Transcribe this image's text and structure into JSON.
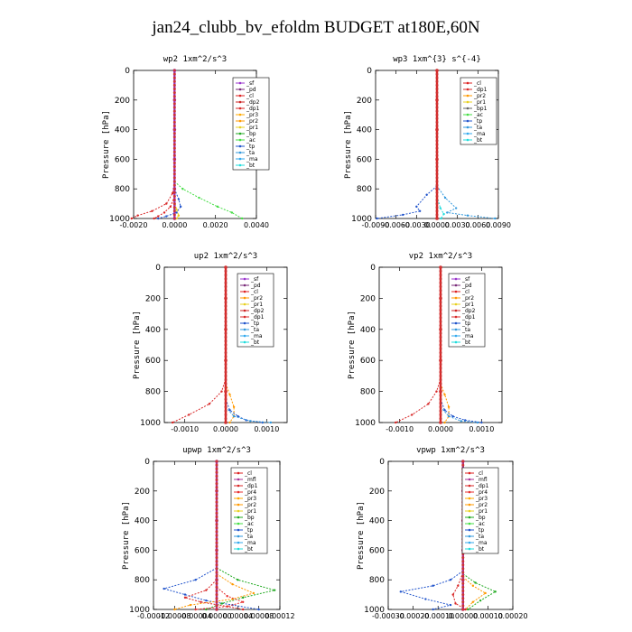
{
  "title": "jan24_clubb_bv_efoldm  BUDGET at180E,60N",
  "colors": {
    "_sf": "#9933cc",
    "_pd": "#7a2c7a",
    "_cl": "#dd2222",
    "_dp2": "#cc2222",
    "_dp1": "#d82828",
    "_pr3": "#ffaa00",
    "_pr2": "#ff9900",
    "_pr1": "#e8d020",
    "_bp": "#22aa22",
    "_ac": "#44dd44",
    "_tp": "#2255cc",
    "_ta": "#3399dd",
    "_ma": "#33aaee",
    "_bt": "#22dddd",
    "_mfl": "#aa3399",
    "_pr4": "#e83030"
  },
  "chart_data": [
    {
      "id": "wp2",
      "type": "line",
      "title": "wp2   1xm^2/s^3",
      "ylabel": "Pressure [hPa]",
      "xlim": [
        -0.002,
        0.004
      ],
      "ylim": [
        1000,
        0
      ],
      "xticks": [
        "-0.0020",
        "0.0000",
        "0.0020",
        "0.0040"
      ],
      "xtick_values": [
        -0.002,
        0,
        0.002,
        0.004
      ],
      "yticks": [
        "0",
        "200",
        "400",
        "600",
        "800",
        "1000"
      ],
      "legend": [
        "_sf",
        "_pd",
        "_cl",
        "_dp2",
        "_dp1",
        "_pr3",
        "_pr2",
        "_pr1",
        "_bp",
        "_ac",
        "_tp",
        "_ta",
        "_ma",
        "_bt"
      ],
      "series": [
        {
          "name": "_dp1",
          "x": [
            0,
            -0.0001,
            -0.0004,
            -0.0011,
            -0.0018,
            -0.0021
          ],
          "y": [
            750,
            830,
            900,
            950,
            980,
            1000
          ]
        },
        {
          "name": "_ac",
          "x": [
            0,
            0.0004,
            0.0012,
            0.0021,
            0.0028,
            0.0033
          ],
          "y": [
            750,
            800,
            860,
            920,
            960,
            1000
          ]
        },
        {
          "name": "_tp",
          "x": [
            0,
            0.0002,
            0.0003,
            0.0001,
            -0.0004,
            -0.0008
          ],
          "y": [
            800,
            870,
            920,
            960,
            985,
            1000
          ]
        },
        {
          "name": "_cl",
          "x": [
            0,
            -0.0002,
            -0.0005,
            -0.0008,
            -0.001
          ],
          "y": [
            850,
            920,
            960,
            985,
            1000
          ]
        },
        {
          "name": "_pr1",
          "x": [
            0,
            0.0001,
            0.0002,
            0.0001
          ],
          "y": [
            880,
            940,
            980,
            1000
          ]
        },
        {
          "name": "_sf",
          "x": [
            0,
            0,
            0,
            0,
            0,
            0
          ],
          "y": [
            0,
            200,
            400,
            600,
            800,
            1000
          ]
        }
      ]
    },
    {
      "id": "wp3",
      "type": "line",
      "title": "wp3   1xm^{3} s^{-4}",
      "ylabel": "Pressure [hPa]",
      "xlim": [
        -0.009,
        0.009
      ],
      "ylim": [
        1000,
        0
      ],
      "xticks": [
        "-0.0090",
        "-0.0060",
        "-0.0030",
        "0.0000",
        "0.0030",
        "0.0060",
        "0.0090"
      ],
      "xtick_values": [
        -0.009,
        -0.006,
        -0.003,
        0,
        0.003,
        0.006,
        0.009
      ],
      "yticks": [
        "0",
        "200",
        "400",
        "600",
        "800",
        "1000"
      ],
      "legend": [
        "_cl",
        "_dp1",
        "_pr2",
        "_pr1",
        "_bp1",
        "_ac",
        "_tp",
        "_ta",
        "_ma",
        "_bt"
      ],
      "series": [
        {
          "name": "_tp",
          "x": [
            0,
            -0.0015,
            -0.003,
            -0.0025,
            -0.005,
            -0.0088
          ],
          "y": [
            780,
            840,
            920,
            950,
            975,
            1000
          ]
        },
        {
          "name": "_ta",
          "x": [
            0,
            0.0012,
            0.0028,
            0.0015,
            0.0045,
            0.0085
          ],
          "y": [
            780,
            860,
            930,
            960,
            980,
            1000
          ]
        },
        {
          "name": "_bt",
          "x": [
            0,
            0.0005,
            0.001,
            0.0006
          ],
          "y": [
            850,
            930,
            970,
            1000
          ]
        },
        {
          "name": "_cl",
          "x": [
            0,
            0,
            0,
            0,
            0,
            0
          ],
          "y": [
            0,
            200,
            400,
            600,
            800,
            1000
          ]
        }
      ]
    },
    {
      "id": "up2",
      "type": "line",
      "title": "up2   1xm^2/s^3",
      "ylabel": "Pressure [hPa]",
      "xlim": [
        -0.0015,
        0.0015
      ],
      "ylim": [
        1000,
        0
      ],
      "xticks": [
        "-0.0010",
        "0.0000",
        "0.0010"
      ],
      "xtick_values": [
        -0.001,
        0,
        0.001
      ],
      "yticks": [
        "0",
        "200",
        "400",
        "600",
        "800",
        "1000"
      ],
      "legend": [
        "_sf",
        "_pd",
        "_cl",
        "_pr2",
        "_pr1",
        "_dp2",
        "_dp1",
        "_tp",
        "_ta",
        "_ma",
        "_bt"
      ],
      "series": [
        {
          "name": "_dp1",
          "x": [
            0,
            -0.0001,
            -0.0004,
            -0.0009,
            -0.0013
          ],
          "y": [
            720,
            800,
            880,
            950,
            1000
          ]
        },
        {
          "name": "_pr2",
          "x": [
            0,
            0.0001,
            0.0002,
            0.0002,
            0.0001
          ],
          "y": [
            750,
            820,
            900,
            960,
            1000
          ]
        },
        {
          "name": "_tp",
          "x": [
            0,
            0.0001,
            0.0003,
            0.0005,
            0.0009
          ],
          "y": [
            850,
            920,
            960,
            985,
            1000
          ]
        },
        {
          "name": "_ta",
          "x": [
            0,
            0.0002,
            0.0006,
            0.0011
          ],
          "y": [
            900,
            960,
            990,
            1000
          ]
        },
        {
          "name": "_cl",
          "x": [
            0,
            0,
            0,
            0,
            0,
            0
          ],
          "y": [
            0,
            200,
            400,
            600,
            800,
            1000
          ]
        }
      ]
    },
    {
      "id": "vp2",
      "type": "line",
      "title": "vp2   1xm^2/s^3",
      "ylabel": "Pressure [hPa]",
      "xlim": [
        -0.0015,
        0.0015
      ],
      "ylim": [
        1000,
        0
      ],
      "xticks": [
        "-0.0010",
        "0.0000",
        "0.0010"
      ],
      "xtick_values": [
        -0.001,
        0,
        0.001
      ],
      "yticks": [
        "0",
        "200",
        "400",
        "600",
        "800",
        "1000"
      ],
      "legend": [
        "_sf",
        "_pd",
        "_cl",
        "_pr2",
        "_pr1",
        "_dp2",
        "_dp1",
        "_tp",
        "_ta",
        "_ma",
        "_bt"
      ],
      "series": [
        {
          "name": "_dp1",
          "x": [
            0,
            -0.0001,
            -0.0003,
            -0.0007,
            -0.0011
          ],
          "y": [
            720,
            800,
            880,
            950,
            1000
          ]
        },
        {
          "name": "_pr2",
          "x": [
            0,
            0.0001,
            0.0002,
            0.0002,
            0.0001
          ],
          "y": [
            750,
            820,
            900,
            960,
            1000
          ]
        },
        {
          "name": "_tp",
          "x": [
            0,
            0.0001,
            0.0003,
            0.0006,
            0.001
          ],
          "y": [
            850,
            920,
            960,
            985,
            1000
          ]
        },
        {
          "name": "_ta",
          "x": [
            0,
            0.0002,
            0.0005,
            0.0009
          ],
          "y": [
            900,
            960,
            990,
            1000
          ]
        },
        {
          "name": "_cl",
          "x": [
            0,
            0,
            0,
            0,
            0,
            0
          ],
          "y": [
            0,
            200,
            400,
            600,
            800,
            1000
          ]
        }
      ]
    },
    {
      "id": "upwp",
      "type": "line",
      "title": "upwp   1xm^2/s^3",
      "ylabel": "Pressure [hPa]",
      "xlim": [
        -0.00012,
        0.00012
      ],
      "ylim": [
        1000,
        0
      ],
      "xticks": [
        "-0.00012",
        "-0.00008",
        "-0.00004",
        "0.00000",
        "0.00004",
        "0.00008",
        "0.00012"
      ],
      "xtick_values": [
        -0.00012,
        -8e-05,
        -4e-05,
        0,
        4e-05,
        8e-05,
        0.00012
      ],
      "yticks": [
        "0",
        "200",
        "400",
        "600",
        "800",
        "1000"
      ],
      "legend": [
        "_cl",
        "_mfl",
        "_dp1",
        "_pr4",
        "_pr3",
        "_pr2",
        "_pr1",
        "_bp",
        "_ac",
        "_tp",
        "_ta",
        "_ma",
        "_bt"
      ],
      "series": [
        {
          "name": "_tp",
          "x": [
            0,
            -4e-05,
            -0.0001,
            -6e-05,
            -2e-05,
            3e-05,
            8e-05
          ],
          "y": [
            720,
            800,
            860,
            900,
            940,
            970,
            1000
          ]
        },
        {
          "name": "_bp",
          "x": [
            0,
            4e-05,
            0.00011,
            5e-05,
            1e-05,
            -2e-05
          ],
          "y": [
            720,
            800,
            870,
            920,
            960,
            1000
          ]
        },
        {
          "name": "_pr2",
          "x": [
            0,
            3e-05,
            7e-05,
            3e-05,
            -5e-05,
            -8e-05
          ],
          "y": [
            760,
            830,
            890,
            930,
            970,
            1000
          ]
        },
        {
          "name": "_dp1",
          "x": [
            0,
            -2e-05,
            -6e-05,
            -3e-05,
            2e-05,
            5e-05
          ],
          "y": [
            800,
            870,
            920,
            950,
            980,
            1000
          ]
        },
        {
          "name": "_pr4",
          "x": [
            0,
            2e-05,
            5e-05,
            2e-05,
            -4e-05
          ],
          "y": [
            850,
            910,
            950,
            980,
            1000
          ]
        },
        {
          "name": "_mfl",
          "x": [
            0,
            0,
            0,
            0,
            0,
            0
          ],
          "y": [
            0,
            200,
            400,
            600,
            800,
            1000
          ]
        }
      ]
    },
    {
      "id": "vpwp",
      "type": "line",
      "title": "vpwp   1xm^2/s^3",
      "ylabel": "Pressure [hPa]",
      "xlim": [
        -0.0003,
        0.0002
      ],
      "ylim": [
        1000,
        0
      ],
      "xticks": [
        "-0.00030",
        "-0.00020",
        "-0.00010",
        "0.00000",
        "0.00010",
        "0.00020"
      ],
      "xtick_values": [
        -0.0003,
        -0.0002,
        -0.0001,
        0,
        0.0001,
        0.0002
      ],
      "yticks": [
        "0",
        "200",
        "400",
        "600",
        "800",
        "1000"
      ],
      "legend": [
        "_cl",
        "_mfl",
        "_dp1",
        "_pr4",
        "_pr3",
        "_pr2",
        "_pr1",
        "_bp",
        "_ac",
        "_tp",
        "_ta",
        "_ma",
        "_bt"
      ],
      "series": [
        {
          "name": "_tp",
          "x": [
            0,
            -5e-05,
            -0.00012,
            -0.00025,
            -0.00015,
            -5e-05,
            -0.00012
          ],
          "y": [
            740,
            800,
            840,
            880,
            930,
            970,
            1000
          ]
        },
        {
          "name": "_bp",
          "x": [
            0,
            5e-05,
            0.00013,
            7e-05,
            2e-05
          ],
          "y": [
            760,
            820,
            880,
            940,
            1000
          ]
        },
        {
          "name": "_pr2",
          "x": [
            0,
            4e-05,
            9e-05,
            4e-05,
            1e-05
          ],
          "y": [
            780,
            840,
            890,
            950,
            1000
          ]
        },
        {
          "name": "_dp1",
          "x": [
            0,
            -2e-05,
            -4e-05,
            -3e-05,
            1e-05
          ],
          "y": [
            750,
            840,
            900,
            960,
            1000
          ]
        },
        {
          "name": "_mfl",
          "x": [
            0,
            0,
            0,
            0,
            0,
            0
          ],
          "y": [
            0,
            200,
            400,
            600,
            800,
            1000
          ]
        }
      ]
    }
  ]
}
